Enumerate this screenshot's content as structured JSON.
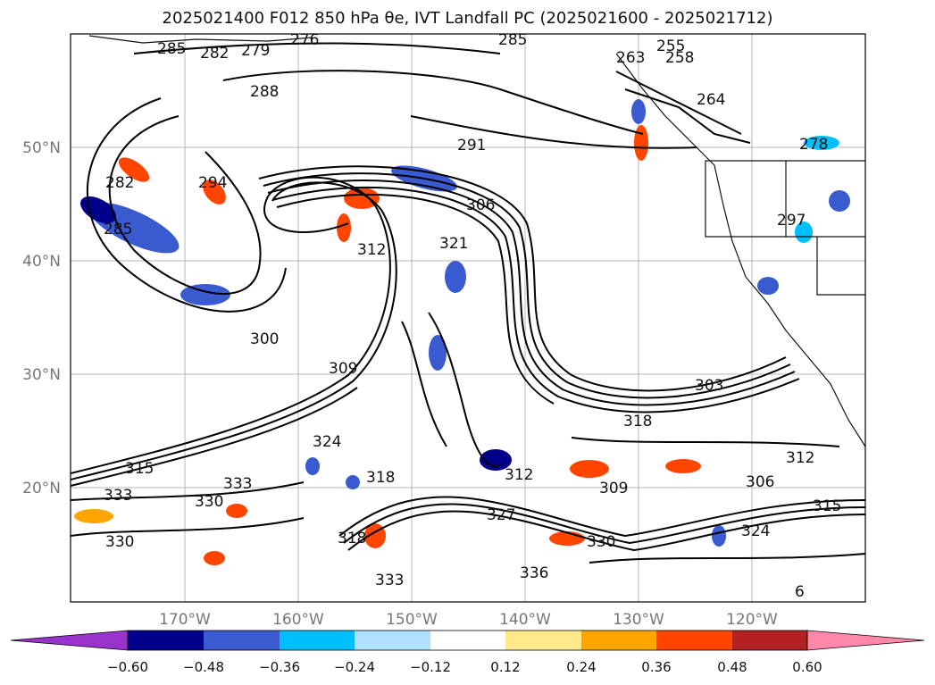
{
  "title": "2025021400 F012 850 hPa θe, IVT Landfall PC (2025021600 - 2025021712)",
  "map": {
    "lat_ticks": [
      "50°N",
      "40°N",
      "30°N",
      "20°N"
    ],
    "lon_ticks": [
      "170°W",
      "160°W",
      "150°W",
      "140°W",
      "130°W",
      "120°W"
    ]
  },
  "contour_labels": [
    "285",
    "282",
    "279",
    "276",
    "285",
    "255",
    "263",
    "258",
    "288",
    "291",
    "264",
    "278",
    "282",
    "294",
    "285",
    "306",
    "297",
    "312",
    "321",
    "300",
    "309",
    "303",
    "318",
    "312",
    "324",
    "315",
    "333",
    "330",
    "333",
    "312",
    "309",
    "306",
    "318",
    "327",
    "315",
    "324",
    "333",
    "330",
    "336",
    "318",
    "330",
    "6"
  ],
  "colorbar": {
    "ticks": [
      "−0.60",
      "−0.48",
      "−0.36",
      "−0.24",
      "−0.12",
      "0.12",
      "0.24",
      "0.36",
      "0.48",
      "0.60"
    ],
    "colors": [
      "#9a32cd",
      "#00008b",
      "#3a5bd0",
      "#00bfff",
      "#b0e0ff",
      "#ffffff",
      "#ffe98a",
      "#ffa500",
      "#ff4500",
      "#b22222",
      "#ff88aa"
    ]
  }
}
